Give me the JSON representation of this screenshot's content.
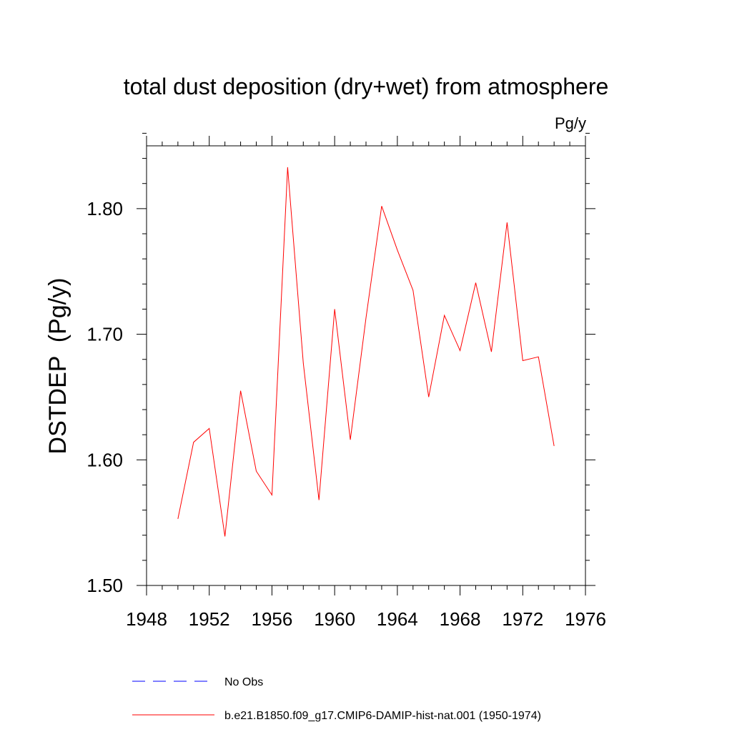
{
  "chart_data": {
    "type": "line",
    "title": "total dust deposition (dry+wet) from atmosphere",
    "units_label": "Pg/y",
    "ylabel": "DSTDEP  (Pg/y)",
    "xlabel": "",
    "xlim": [
      1948,
      1976
    ],
    "ylim": [
      1.5,
      1.85
    ],
    "x_ticks": [
      1948,
      1952,
      1956,
      1960,
      1964,
      1968,
      1972,
      1976
    ],
    "x_tick_labels": [
      "1948",
      "1952",
      "1956",
      "1960",
      "1964",
      "1968",
      "1972",
      "1976"
    ],
    "x_minor_step": 1,
    "y_ticks": [
      1.5,
      1.6,
      1.7,
      1.8
    ],
    "y_tick_labels": [
      "1.50",
      "1.60",
      "1.70",
      "1.80"
    ],
    "y_minor_step": 0.02,
    "grid": false,
    "legend_position": "bottom",
    "series": [
      {
        "name": "b.e21.B1850.f09_g17.CMIP6-DAMIP-hist-nat.001 (1950-1974)",
        "color": "#ff0000",
        "style": "solid",
        "x": [
          1950,
          1951,
          1952,
          1953,
          1954,
          1955,
          1956,
          1957,
          1958,
          1959,
          1960,
          1961,
          1962,
          1963,
          1964,
          1965,
          1966,
          1967,
          1968,
          1969,
          1970,
          1971,
          1972,
          1973,
          1974
        ],
        "values": [
          1.553,
          1.614,
          1.625,
          1.539,
          1.655,
          1.591,
          1.572,
          1.833,
          1.677,
          1.568,
          1.72,
          1.616,
          1.713,
          1.802,
          1.767,
          1.735,
          1.65,
          1.715,
          1.687,
          1.741,
          1.686,
          1.789,
          1.679,
          1.682,
          1.611
        ]
      }
    ],
    "legend": [
      {
        "label": "No Obs",
        "color": "#0000ff",
        "style": "dashed"
      },
      {
        "label": "b.e21.B1850.f09_g17.CMIP6-DAMIP-hist-nat.001 (1950-1974)",
        "color": "#ff0000",
        "style": "solid"
      }
    ]
  }
}
